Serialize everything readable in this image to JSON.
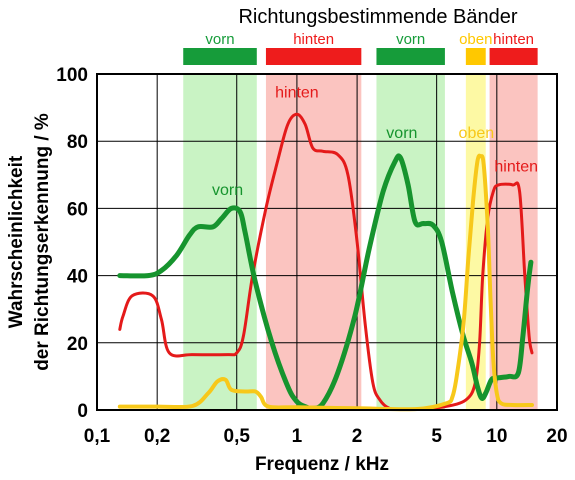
{
  "chart_data": {
    "type": "line",
    "title": "Richtungsbestimmende  Bänder",
    "xlabel": "Frequenz  /  kHz",
    "ylabel_line1": "Wahrscheinlichkeit",
    "ylabel_line2": "der  Richtungserkennung  /  %",
    "xscale": "log",
    "xlim": [
      0.1,
      20
    ],
    "ylim": [
      0,
      100
    ],
    "x_ticks": [
      {
        "value": 0.1,
        "label": "0,1"
      },
      {
        "value": 0.2,
        "label": "0,2"
      },
      {
        "value": 0.5,
        "label": "0,5"
      },
      {
        "value": 1,
        "label": "1"
      },
      {
        "value": 2,
        "label": "2"
      },
      {
        "value": 5,
        "label": "5"
      },
      {
        "value": 10,
        "label": "10"
      },
      {
        "value": 20,
        "label": "20"
      }
    ],
    "y_ticks": [
      {
        "value": 0,
        "label": "0"
      },
      {
        "value": 20,
        "label": "20"
      },
      {
        "value": 40,
        "label": "40"
      },
      {
        "value": 60,
        "label": "60"
      },
      {
        "value": 80,
        "label": "80"
      },
      {
        "value": 100,
        "label": "100"
      }
    ],
    "grid_x": [
      0.2,
      0.5,
      1,
      2,
      5,
      10
    ],
    "grid_y": [
      20,
      40,
      60,
      80
    ],
    "bands": [
      {
        "label": "vorn",
        "color": "#169c3a",
        "fill": "#c9f3c4",
        "from": 0.27,
        "to": 0.63
      },
      {
        "label": "hinten",
        "color": "#ee1c1c",
        "fill": "#fbc4c0",
        "from": 0.7,
        "to": 2.1
      },
      {
        "label": "vorn",
        "color": "#169c3a",
        "fill": "#c9f3c4",
        "from": 2.5,
        "to": 5.5
      },
      {
        "label": "oben",
        "color": "#ffc800",
        "fill": "#fdf9a4",
        "from": 7,
        "to": 8.8
      },
      {
        "label": "hinten",
        "color": "#ee1c1c",
        "fill": "#fbc4c0",
        "from": 9.2,
        "to": 16
      }
    ],
    "series": [
      {
        "key": "red",
        "color": "#e41a1a",
        "width": 3,
        "points": [
          [
            0.13,
            24
          ],
          [
            0.135,
            28
          ],
          [
            0.15,
            34
          ],
          [
            0.19,
            34
          ],
          [
            0.21,
            27
          ],
          [
            0.23,
            17
          ],
          [
            0.3,
            16.5
          ],
          [
            0.45,
            16.5
          ],
          [
            0.5,
            17
          ],
          [
            0.54,
            22
          ],
          [
            0.6,
            40
          ],
          [
            0.7,
            60
          ],
          [
            0.8,
            74
          ],
          [
            0.9,
            85
          ],
          [
            1.0,
            88
          ],
          [
            1.1,
            85
          ],
          [
            1.2,
            78
          ],
          [
            1.35,
            77
          ],
          [
            1.6,
            76
          ],
          [
            1.8,
            70
          ],
          [
            2.0,
            50
          ],
          [
            2.2,
            25
          ],
          [
            2.4,
            8
          ],
          [
            2.6,
            3
          ],
          [
            2.9,
            0.5
          ],
          [
            3.3,
            0.3
          ],
          [
            4,
            0.3
          ],
          [
            5.5,
            1
          ],
          [
            7,
            3
          ],
          [
            7.8,
            8
          ],
          [
            8.2,
            20
          ],
          [
            8.5,
            40
          ],
          [
            9.0,
            57
          ],
          [
            9.6,
            65
          ],
          [
            10.2,
            67
          ],
          [
            12,
            67
          ],
          [
            13,
            65
          ],
          [
            13.8,
            40
          ],
          [
            14.5,
            22
          ],
          [
            15,
            17
          ]
        ]
      },
      {
        "key": "green",
        "color": "#16942e",
        "width": 5,
        "points": [
          [
            0.13,
            40
          ],
          [
            0.18,
            40
          ],
          [
            0.21,
            41.5
          ],
          [
            0.25,
            46
          ],
          [
            0.29,
            52
          ],
          [
            0.32,
            54.5
          ],
          [
            0.38,
            54.5
          ],
          [
            0.42,
            57
          ],
          [
            0.47,
            60
          ],
          [
            0.52,
            59
          ],
          [
            0.55,
            53
          ],
          [
            0.62,
            38
          ],
          [
            0.75,
            20
          ],
          [
            0.9,
            7
          ],
          [
            1.0,
            2.5
          ],
          [
            1.1,
            1
          ],
          [
            1.2,
            0.5
          ],
          [
            1.35,
            2
          ],
          [
            1.6,
            11
          ],
          [
            1.95,
            28
          ],
          [
            2.3,
            48
          ],
          [
            2.7,
            65
          ],
          [
            3.1,
            74
          ],
          [
            3.3,
            75
          ],
          [
            3.6,
            67
          ],
          [
            3.9,
            56
          ],
          [
            4.3,
            55.5
          ],
          [
            4.8,
            55
          ],
          [
            5.3,
            50
          ],
          [
            6.0,
            35
          ],
          [
            6.8,
            22
          ],
          [
            7.5,
            14
          ],
          [
            8.0,
            7
          ],
          [
            8.4,
            3.5
          ],
          [
            8.8,
            5
          ],
          [
            9.4,
            9
          ],
          [
            10.0,
            9.5
          ],
          [
            11.5,
            10
          ],
          [
            12.8,
            11
          ],
          [
            13.5,
            22
          ],
          [
            14.3,
            37
          ],
          [
            14.8,
            44
          ]
        ]
      },
      {
        "key": "yellow",
        "color": "#f7c81a",
        "width": 4,
        "points": [
          [
            0.13,
            1
          ],
          [
            0.2,
            1
          ],
          [
            0.3,
            1.2
          ],
          [
            0.36,
            5
          ],
          [
            0.4,
            8.5
          ],
          [
            0.44,
            9
          ],
          [
            0.47,
            6
          ],
          [
            0.55,
            5.5
          ],
          [
            0.62,
            5.5
          ],
          [
            0.66,
            4
          ],
          [
            0.72,
            1
          ],
          [
            1,
            0.8
          ],
          [
            2,
            0.5
          ],
          [
            4,
            0.3
          ],
          [
            5.6,
            2
          ],
          [
            6.0,
            4
          ],
          [
            6.3,
            10
          ],
          [
            6.8,
            25
          ],
          [
            7.2,
            45
          ],
          [
            7.6,
            62
          ],
          [
            8.0,
            74
          ],
          [
            8.3,
            75.5
          ],
          [
            8.6,
            73
          ],
          [
            9.0,
            55
          ],
          [
            9.3,
            33
          ],
          [
            9.6,
            15
          ],
          [
            10,
            5
          ],
          [
            10.5,
            2
          ],
          [
            12,
            1.5
          ],
          [
            15,
            1.5
          ]
        ]
      }
    ],
    "curve_labels": [
      {
        "text": "hinten",
        "color": "#e41a1a",
        "x": 1.0,
        "y": 93
      },
      {
        "text": "vorn",
        "color": "#16942e",
        "x": 0.45,
        "y": 64
      },
      {
        "text": "vorn",
        "color": "#16942e",
        "x": 3.35,
        "y": 81
      },
      {
        "text": "oben",
        "color": "#f7c81a",
        "x": 7.9,
        "y": 81
      },
      {
        "text": "hinten",
        "color": "#e41a1a",
        "x": 12.5,
        "y": 71
      }
    ]
  }
}
